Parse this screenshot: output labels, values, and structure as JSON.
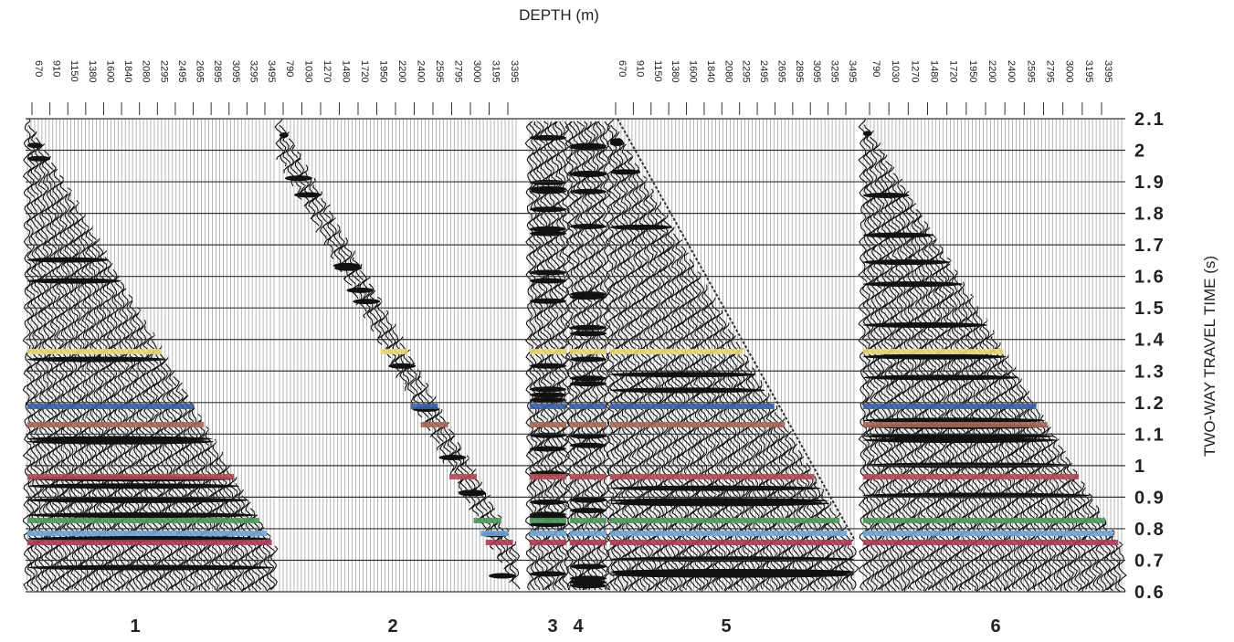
{
  "chart_data": {
    "type": "seismic",
    "title": "DEPTH (m)",
    "y_label": "TWO-WAY TRAVEL TIME (s)",
    "ylim": [
      0.6,
      2.1
    ],
    "yticks": [
      0.6,
      0.7,
      0.8,
      0.9,
      1.0,
      1.1,
      1.2,
      1.3,
      1.4,
      1.5,
      1.6,
      1.7,
      1.8,
      1.9,
      2.0,
      2.1
    ],
    "grid": true,
    "panels": [
      {
        "label": "1",
        "depths": [
          "670",
          "910",
          "1150",
          "1380",
          "1600",
          "1840",
          "2080",
          "2295",
          "2495",
          "2695",
          "2895",
          "3095",
          "3295",
          "3495"
        ]
      },
      {
        "label": "2",
        "depths": [
          "790",
          "1030",
          "1270",
          "1480",
          "1720",
          "1950",
          "2200",
          "2400",
          "2595",
          "2795",
          "3000",
          "3195",
          "3395"
        ]
      },
      {
        "label": "3",
        "depths": []
      },
      {
        "label": "4",
        "depths": []
      },
      {
        "label": "5",
        "depths": [
          "670",
          "910",
          "1150",
          "1380",
          "1600",
          "1840",
          "2080",
          "2295",
          "2495",
          "2695",
          "2895",
          "3095",
          "3295",
          "3495"
        ]
      },
      {
        "label": "6",
        "depths": [
          "790",
          "1030",
          "1270",
          "1480",
          "1720",
          "1950",
          "2200",
          "2400",
          "2595",
          "2795",
          "3000",
          "3195",
          "3395"
        ]
      }
    ]
  }
}
